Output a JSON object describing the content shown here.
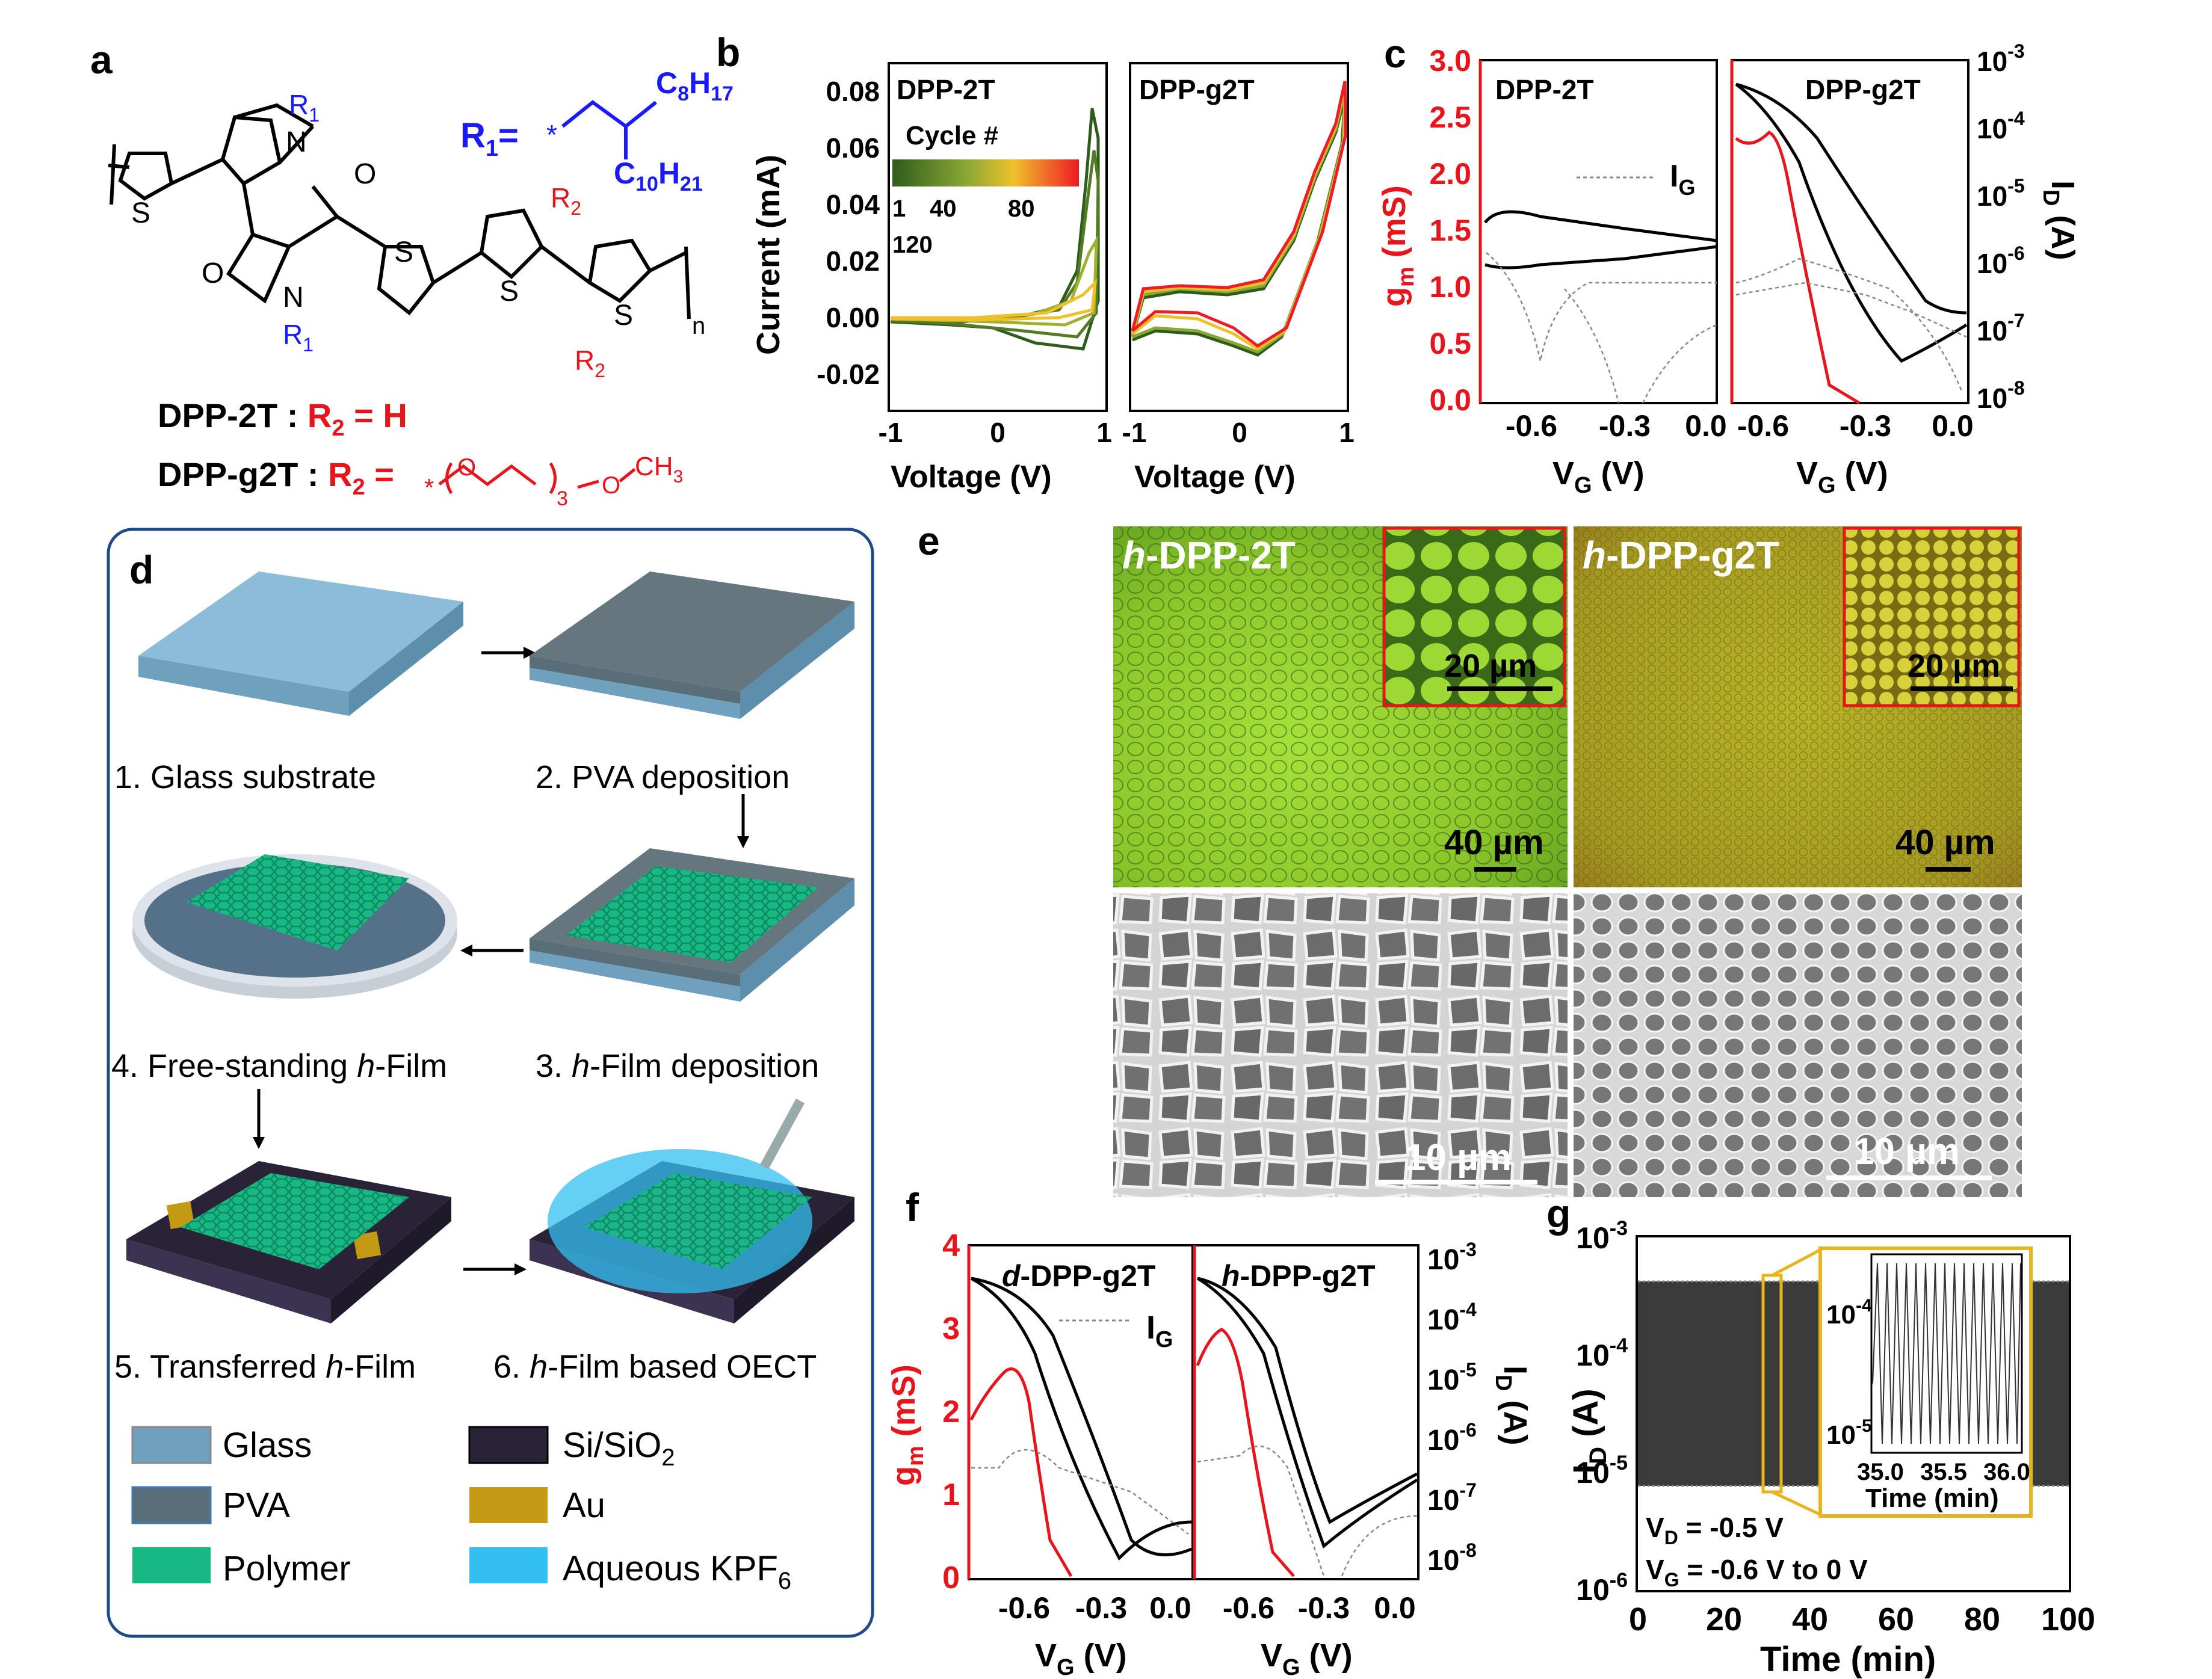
{
  "panel_letters": {
    "a": "a",
    "b": "b",
    "c": "c",
    "d": "d",
    "e": "e",
    "f": "f",
    "g": "g"
  },
  "panel_a": {
    "r1_label": "R",
    "r1_sub": "1",
    "r1_def_eq": "=",
    "c8": "C",
    "c8_sub": "8",
    "h17": "H",
    "h17_sub": "17",
    "c10": "C",
    "c10_sub": "10",
    "h21": "H",
    "h21_sub": "21",
    "r2_label": "R",
    "r2_sub": "2",
    "n_sub": "n",
    "dpp2t_name": "DPP-2T : ",
    "dpp2t_eq": " = H",
    "dppg2t_name": "DPP-g2T : ",
    "dppg2t_eq": " =",
    "ch3": "CH",
    "ch3_sub": "3",
    "o": "O",
    "s": "S",
    "n": "N",
    "x3": "3",
    "star": "*",
    "colors": {
      "r1": "#1a1aff",
      "r2": "#e8141c"
    }
  },
  "panel_b": {
    "titles": [
      "DPP-2T",
      "DPP-g2T"
    ],
    "ylabel": "Current (mA)",
    "xlabel": "Voltage (V)",
    "legend_title": "Cycle #",
    "legend_ticks": [
      "1",
      "40",
      "80",
      "120"
    ],
    "yticks": [
      "0.08",
      "0.06",
      "0.04",
      "0.02",
      "0.00",
      "-0.02"
    ],
    "xticks_left": [
      "-1",
      "0",
      "1"
    ],
    "xticks_right": [
      "-1",
      "0",
      "1"
    ]
  },
  "panel_c": {
    "titles": [
      "DPP-2T",
      "DPP-g2T"
    ],
    "ylabel_left": "g",
    "ylabel_left_sub": "m",
    "ylabel_left_unit": " (mS)",
    "ylabel_right": "I",
    "ylabel_right_sub": "D",
    "ylabel_right_unit": " (A)",
    "ig_label": "I",
    "ig_sub": "G",
    "yticks_left": [
      "3.0",
      "2.5",
      "2.0",
      "1.5",
      "1.0",
      "0.5",
      "0.0"
    ],
    "yticks_right_exp": [
      "-3",
      "-4",
      "-5",
      "-6",
      "-7",
      "-8"
    ],
    "xticks_left": [
      "-0.6",
      "-0.3",
      "0.0"
    ],
    "xticks_right": [
      "-0.6",
      "-0.3",
      "0.0"
    ],
    "xlabel": "V",
    "xlabel_sub": "G",
    "xlabel_unit": " (V)",
    "ten": "10",
    "colors": {
      "gm": "#e8141c"
    }
  },
  "panel_d": {
    "steps": [
      "1. Glass substrate",
      "2. PVA deposition",
      "3. ",
      "h",
      "-Film deposition",
      "4. Free-standing ",
      "-Film",
      "5. Transferred ",
      "6. ",
      "-Film based OECT"
    ],
    "legend": [
      "Glass",
      "PVA",
      "Polymer",
      "Si/SiO",
      "Au",
      "Aqueous KPF"
    ],
    "sub2": "2",
    "sub6": "6",
    "legend_colors": [
      "#6fa1bf",
      "#5a6e7a",
      "#18b884",
      "#2a2338",
      "#c39a14",
      "#33c0f0"
    ]
  },
  "panel_e": {
    "labels": [
      "h",
      "-DPP-2T",
      "-DPP-g2T"
    ],
    "scale_20": "20 µm",
    "scale_40": "40 µm",
    "scale_10": "10 µm"
  },
  "panel_f": {
    "titles_prefix": [
      "d",
      "h"
    ],
    "titles_suffix": "-DPP-g2T",
    "ylabel_left": "g",
    "ylabel_left_sub": "m",
    "ylabel_left_unit": " (mS)",
    "ylabel_right": "I",
    "ylabel_right_sub": "D",
    "ylabel_right_unit": " (A)",
    "ig_label": "I",
    "ig_sub": "G",
    "yticks_left": [
      "4",
      "3",
      "2",
      "1",
      "0"
    ],
    "yticks_right_exp": [
      "-3",
      "-4",
      "-5",
      "-6",
      "-7",
      "-8"
    ],
    "xticks": [
      "-0.6",
      "-0.3",
      "0.0"
    ],
    "xlabel": "V",
    "xlabel_sub": "G",
    "xlabel_unit": " (V)",
    "ten": "10"
  },
  "panel_g": {
    "ylabel": "I",
    "ylabel_sub": "D",
    "ylabel_unit": " (A)",
    "xlabel": "Time (min)",
    "xticks": [
      "0",
      "20",
      "40",
      "60",
      "80",
      "100"
    ],
    "yticks_exp": [
      "-3",
      "-4",
      "-5",
      "-6"
    ],
    "inset_xticks": [
      "35.0",
      "35.5",
      "36.0"
    ],
    "inset_yticks_exp": [
      "-4",
      "-5"
    ],
    "inset_xlabel": "Time (min)",
    "vd": "V",
    "vd_sub": "D",
    "vd_val": " = -0.5 V",
    "vg": "V",
    "vg_sub": "G",
    "vg_val": " = -0.6 V to 0 V",
    "ten": "10",
    "colors": {
      "inset_border": "#e8b41c"
    }
  }
}
